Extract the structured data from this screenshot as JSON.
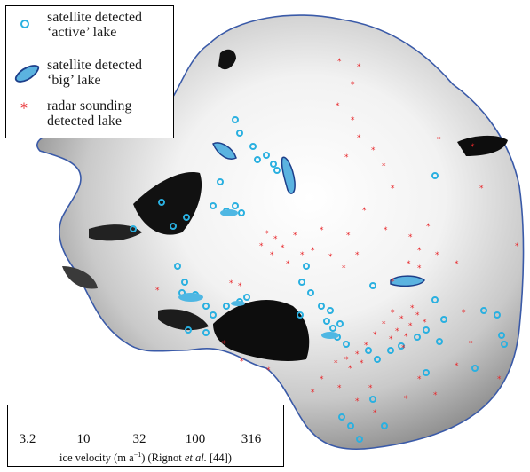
{
  "legend": {
    "active_line1": "satellite detected",
    "active_line2": "‘active’ lake",
    "big_line1": "satellite detected",
    "big_line2": "‘big’ lake",
    "radar_line1": "radar sounding",
    "radar_line2": "detected lake"
  },
  "colorbar": {
    "ticks": [
      "3.2",
      "10",
      "32",
      "100",
      "316"
    ],
    "title_prefix": "ice velocity (m a",
    "title_exp": "−1",
    "title_mid": ") (Rignot ",
    "title_etal": "et al.",
    "title_ref": " [44])"
  },
  "colors": {
    "active_lake": "#2ab0e0",
    "big_lake": "#5bb3e0",
    "big_lake_outline": "#1d3f8a",
    "radar_lake": "#e8262a",
    "coastline": "#3a5aa8",
    "ice_fast": "#0a0a0a",
    "ice_slow": "#ffffff"
  }
}
